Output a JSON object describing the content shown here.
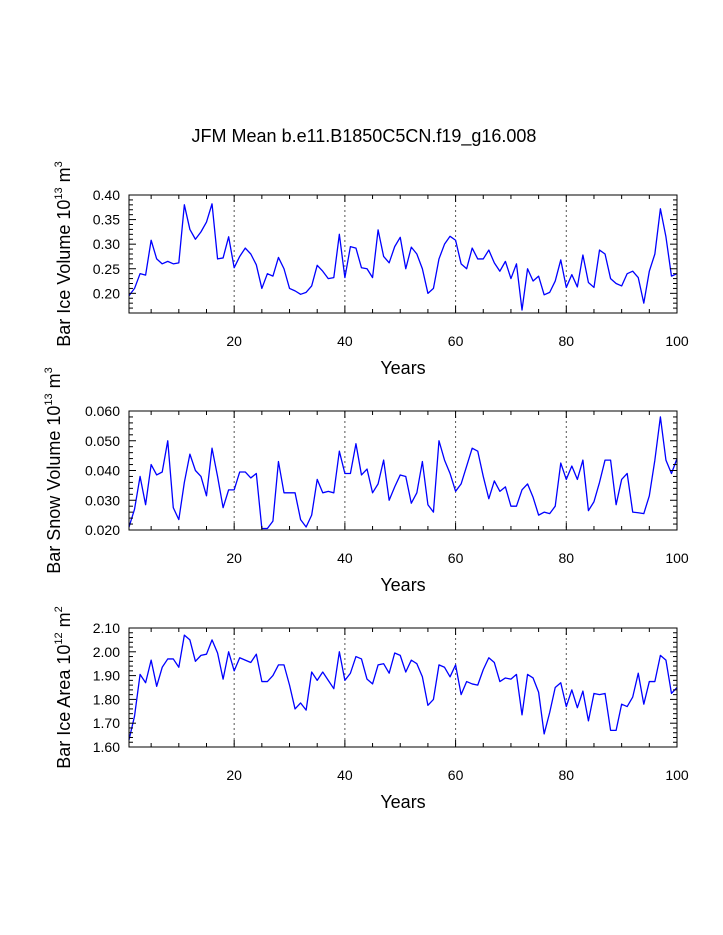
{
  "title": "JFM Mean b.e11.B1850C5CN.f19_g16.008",
  "line_color": "#0000ff",
  "grid_color": "#555555",
  "chart_data": [
    {
      "type": "line",
      "id": "ice-volume",
      "ylabel_main": "Bar Ice Volume 10",
      "ylabel_exp": "13",
      "ylabel_unit": " m",
      "ylabel_unit_exp": "3",
      "xlabel": "Years",
      "xlim": [
        1,
        100
      ],
      "ylim": [
        0.16,
        0.4
      ],
      "xticks": [
        20,
        40,
        60,
        80,
        100
      ],
      "xtick_labels": [
        "20",
        "40",
        "60",
        "80",
        "100"
      ],
      "yticks": [
        0.2,
        0.25,
        0.3,
        0.35,
        0.4
      ],
      "ytick_labels": [
        "0.20",
        "0.25",
        "0.30",
        "0.35",
        "0.40"
      ],
      "grid_x": [
        20,
        40,
        60,
        80
      ],
      "values": [
        0.195,
        0.21,
        0.24,
        0.237,
        0.308,
        0.27,
        0.26,
        0.265,
        0.26,
        0.262,
        0.38,
        0.33,
        0.31,
        0.325,
        0.345,
        0.382,
        0.27,
        0.272,
        0.315,
        0.252,
        0.275,
        0.292,
        0.28,
        0.258,
        0.21,
        0.24,
        0.235,
        0.273,
        0.25,
        0.21,
        0.205,
        0.198,
        0.202,
        0.215,
        0.257,
        0.245,
        0.23,
        0.232,
        0.32,
        0.232,
        0.295,
        0.292,
        0.252,
        0.25,
        0.232,
        0.329,
        0.275,
        0.262,
        0.295,
        0.314,
        0.25,
        0.294,
        0.28,
        0.25,
        0.2,
        0.21,
        0.27,
        0.3,
        0.316,
        0.308,
        0.26,
        0.25,
        0.292,
        0.27,
        0.27,
        0.288,
        0.262,
        0.245,
        0.265,
        0.23,
        0.26,
        0.166,
        0.25,
        0.225,
        0.235,
        0.197,
        0.202,
        0.225,
        0.268,
        0.212,
        0.238,
        0.213,
        0.278,
        0.222,
        0.212,
        0.288,
        0.28,
        0.23,
        0.22,
        0.215,
        0.24,
        0.245,
        0.232,
        0.18,
        0.245,
        0.28,
        0.372,
        0.315,
        0.235,
        0.24
      ]
    },
    {
      "type": "line",
      "id": "snow-volume",
      "ylabel_main": "Bar Snow Volume 10",
      "ylabel_exp": "13",
      "ylabel_unit": " m",
      "ylabel_unit_exp": "3",
      "xlabel": "Years",
      "xlim": [
        1,
        100
      ],
      "ylim": [
        0.02,
        0.06
      ],
      "xticks": [
        20,
        40,
        60,
        80,
        100
      ],
      "xtick_labels": [
        "20",
        "40",
        "60",
        "80",
        "100"
      ],
      "yticks": [
        0.02,
        0.03,
        0.04,
        0.05,
        0.06
      ],
      "ytick_labels": [
        "0.020",
        "0.030",
        "0.040",
        "0.050",
        "0.060"
      ],
      "grid_x": [
        20,
        40,
        60,
        80
      ],
      "values": [
        0.021,
        0.027,
        0.038,
        0.0285,
        0.042,
        0.0385,
        0.0395,
        0.05,
        0.0275,
        0.0235,
        0.036,
        0.0455,
        0.04,
        0.038,
        0.0315,
        0.0475,
        0.038,
        0.0275,
        0.0335,
        0.0335,
        0.0395,
        0.0395,
        0.0375,
        0.039,
        0.0205,
        0.0205,
        0.023,
        0.043,
        0.0325,
        0.0325,
        0.0325,
        0.0235,
        0.021,
        0.025,
        0.037,
        0.0325,
        0.033,
        0.0325,
        0.0465,
        0.039,
        0.039,
        0.049,
        0.0385,
        0.0405,
        0.0325,
        0.0355,
        0.0435,
        0.03,
        0.0345,
        0.0385,
        0.038,
        0.029,
        0.0325,
        0.043,
        0.0285,
        0.026,
        0.05,
        0.0435,
        0.039,
        0.033,
        0.0355,
        0.0415,
        0.0475,
        0.0465,
        0.038,
        0.0305,
        0.0365,
        0.033,
        0.0345,
        0.028,
        0.028,
        0.0335,
        0.0355,
        0.031,
        0.025,
        0.026,
        0.0255,
        0.028,
        0.0425,
        0.037,
        0.0415,
        0.037,
        0.0435,
        0.0265,
        0.0295,
        0.036,
        0.0435,
        0.0435,
        0.0285,
        0.037,
        0.039,
        0.026,
        0.0258,
        0.0255,
        0.0315,
        0.0435,
        0.058,
        0.0435,
        0.039,
        0.044
      ]
    },
    {
      "type": "line",
      "id": "ice-area",
      "ylabel_main": "Bar Ice Area 10",
      "ylabel_exp": "12",
      "ylabel_unit": " m",
      "ylabel_unit_exp": "2",
      "xlabel": "Years",
      "xlim": [
        1,
        100
      ],
      "ylim": [
        1.6,
        2.1
      ],
      "xticks": [
        20,
        40,
        60,
        80,
        100
      ],
      "xtick_labels": [
        "20",
        "40",
        "60",
        "80",
        "100"
      ],
      "yticks": [
        1.6,
        1.7,
        1.8,
        1.9,
        2.0,
        2.1
      ],
      "ytick_labels": [
        "1.60",
        "1.70",
        "1.80",
        "1.90",
        "2.00",
        "2.10"
      ],
      "grid_x": [
        20,
        40,
        60,
        80
      ],
      "values": [
        1.63,
        1.73,
        1.905,
        1.87,
        1.965,
        1.855,
        1.935,
        1.97,
        1.97,
        1.935,
        2.07,
        2.05,
        1.96,
        1.985,
        1.99,
        2.05,
        1.995,
        1.885,
        2.0,
        1.92,
        1.975,
        1.965,
        1.955,
        1.99,
        1.875,
        1.875,
        1.9,
        1.945,
        1.945,
        1.86,
        1.76,
        1.785,
        1.755,
        1.915,
        1.88,
        1.915,
        1.88,
        1.845,
        2.0,
        1.88,
        1.91,
        1.98,
        1.97,
        1.885,
        1.865,
        1.945,
        1.95,
        1.91,
        1.995,
        1.985,
        1.915,
        1.965,
        1.95,
        1.895,
        1.775,
        1.8,
        1.945,
        1.935,
        1.895,
        1.945,
        1.82,
        1.875,
        1.865,
        1.86,
        1.925,
        1.975,
        1.955,
        1.875,
        1.89,
        1.885,
        1.905,
        1.735,
        1.905,
        1.89,
        1.83,
        1.655,
        1.745,
        1.85,
        1.87,
        1.77,
        1.84,
        1.765,
        1.835,
        1.71,
        1.825,
        1.82,
        1.825,
        1.67,
        1.67,
        1.78,
        1.77,
        1.81,
        1.91,
        1.78,
        1.875,
        1.875,
        1.985,
        1.965,
        1.825,
        1.85
      ]
    }
  ]
}
